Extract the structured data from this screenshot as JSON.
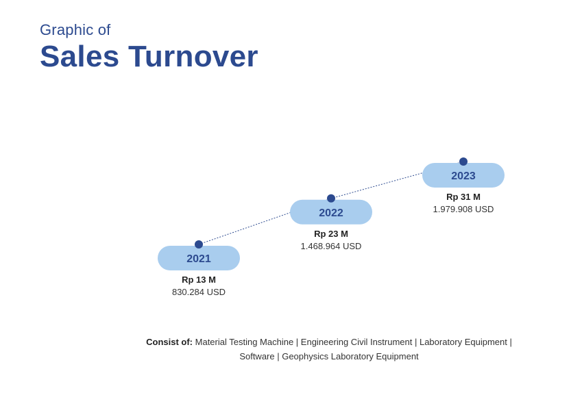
{
  "header": {
    "subtitle": "Graphic of",
    "title": "Sales Turnover"
  },
  "chart_data": {
    "type": "line",
    "title": "Sales Turnover",
    "x": [
      "2021",
      "2022",
      "2023"
    ],
    "series": [
      {
        "values": [
          13,
          23,
          31
        ],
        "labels": [
          "Rp 13 M",
          "Rp 23 M",
          "Rp 31 M"
        ],
        "usd_labels": [
          "830.284 USD",
          "1.468.964 USD",
          "1.979.908 USD"
        ]
      }
    ],
    "grid": false,
    "colors": {
      "pill": "#a9cdee",
      "accent": "#2c4a8f"
    }
  },
  "footnote": {
    "label": "Consist of:",
    "line1": "Material Testing Machine | Engineering Civil Instrument | Laboratory Equipment |",
    "line2": "Software | Geophysics Laboratory Equipment"
  }
}
